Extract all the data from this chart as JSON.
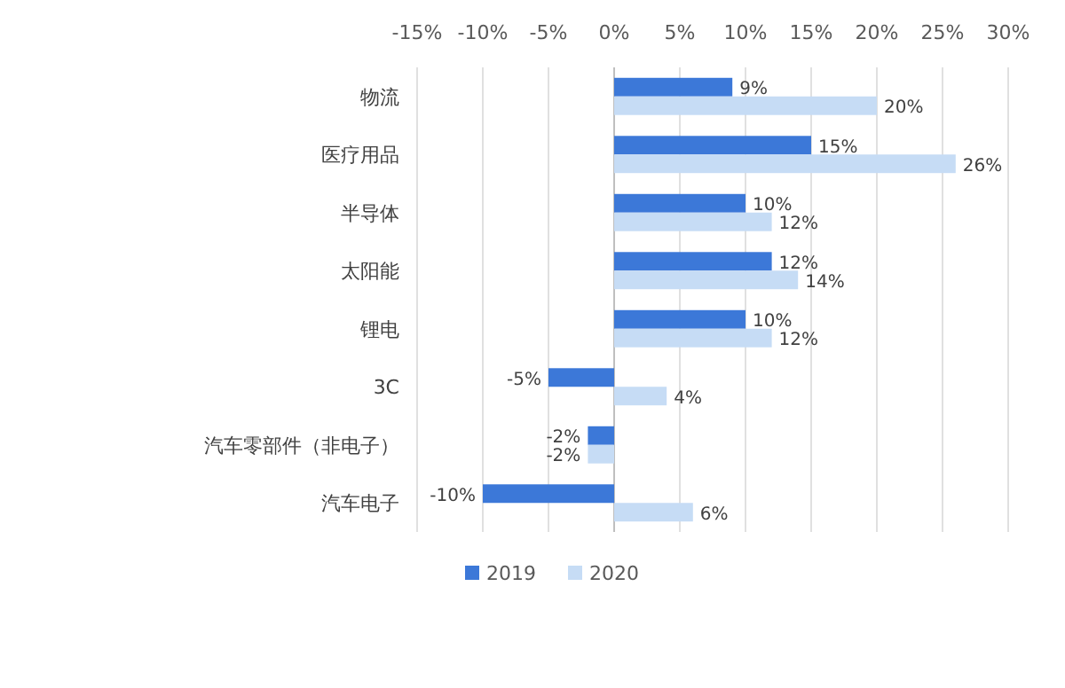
{
  "chart_data": {
    "type": "bar",
    "orientation": "horizontal",
    "categories": [
      "物流",
      "医疗用品",
      "半导体",
      "太阳能",
      "锂电",
      "3C",
      "汽车零部件（非电子）",
      "汽车电子"
    ],
    "series": [
      {
        "name": "2019",
        "color": "#3c78d8",
        "values": [
          9,
          15,
          10,
          12,
          10,
          -5,
          -2,
          -10
        ],
        "value_labels": [
          "9%",
          "15%",
          "10%",
          "12%",
          "10%",
          "-5%",
          "-2%",
          "-10%"
        ]
      },
      {
        "name": "2020",
        "color": "#c6dcf5",
        "values": [
          20,
          26,
          12,
          14,
          12,
          4,
          -2,
          6
        ],
        "value_labels": [
          "20%",
          "26%",
          "12%",
          "14%",
          "12%",
          "4%",
          "-2%",
          "6%"
        ]
      }
    ],
    "xlim": [
      -15,
      30
    ],
    "xticks": [
      {
        "value": -15,
        "label": "-15%"
      },
      {
        "value": -10,
        "label": "-10%"
      },
      {
        "value": -5,
        "label": "-5%"
      },
      {
        "value": 0,
        "label": "0%"
      },
      {
        "value": 5,
        "label": "5%"
      },
      {
        "value": 10,
        "label": "10%"
      },
      {
        "value": 15,
        "label": "15%"
      },
      {
        "value": 20,
        "label": "20%"
      },
      {
        "value": 25,
        "label": "25%"
      },
      {
        "value": 30,
        "label": "30%"
      }
    ],
    "grid": "x",
    "legend": "bottom"
  }
}
